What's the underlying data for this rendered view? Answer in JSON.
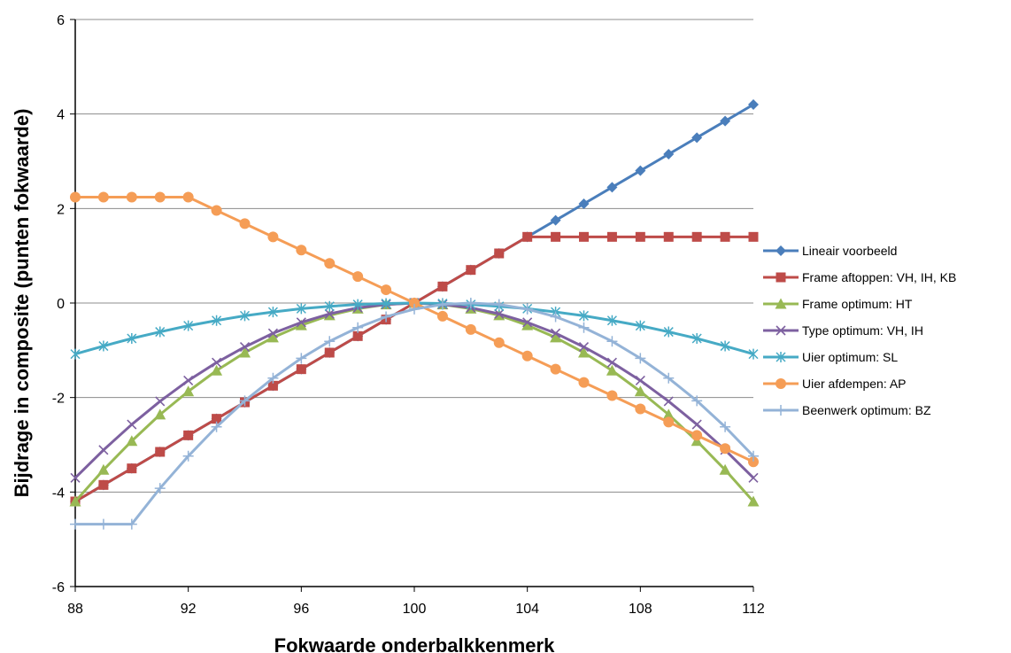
{
  "chart_data": {
    "type": "line",
    "title": "",
    "xlabel": "Fokwaarde onderbalkkenmerk",
    "ylabel": "Bijdrage in composite (punten fokwaarde)",
    "xlim": [
      88,
      112
    ],
    "ylim": [
      -6,
      6
    ],
    "x_ticks": [
      88,
      92,
      96,
      100,
      104,
      108,
      112
    ],
    "y_ticks": [
      -6,
      -4,
      -2,
      0,
      2,
      4,
      6
    ],
    "grid": "horizontal",
    "legend_position": "right",
    "x": [
      88,
      89,
      90,
      91,
      92,
      93,
      94,
      95,
      96,
      97,
      98,
      99,
      100,
      101,
      102,
      103,
      104,
      105,
      106,
      107,
      108,
      109,
      110,
      111,
      112
    ],
    "series": [
      {
        "name": "Lineair voorbeeld",
        "color": "#4a7ebb",
        "marker": "diamond",
        "values": [
          -4.2,
          -3.85,
          -3.5,
          -3.15,
          -2.8,
          -2.45,
          -2.1,
          -1.75,
          -1.4,
          -1.05,
          -0.7,
          -0.35,
          0,
          0.35,
          0.7,
          1.05,
          1.4,
          1.75,
          2.1,
          2.45,
          2.8,
          3.15,
          3.5,
          3.85,
          4.2
        ]
      },
      {
        "name": "Frame aftoppen: VH, IH, KB",
        "color": "#be4b48",
        "marker": "square",
        "values": [
          -4.2,
          -3.85,
          -3.5,
          -3.15,
          -2.8,
          -2.45,
          -2.1,
          -1.75,
          -1.4,
          -1.05,
          -0.7,
          -0.35,
          0,
          0.35,
          0.7,
          1.05,
          1.4,
          1.4,
          1.4,
          1.4,
          1.4,
          1.4,
          1.4,
          1.4,
          1.4
        ]
      },
      {
        "name": "Frame optimum: HT",
        "color": "#98b954",
        "marker": "triangle",
        "values": [
          -4.2,
          -3.53,
          -2.92,
          -2.36,
          -1.87,
          -1.43,
          -1.05,
          -0.73,
          -0.47,
          -0.26,
          -0.12,
          -0.03,
          0,
          -0.03,
          -0.12,
          -0.26,
          -0.47,
          -0.73,
          -1.05,
          -1.43,
          -1.87,
          -2.36,
          -2.92,
          -3.53,
          -4.2
        ]
      },
      {
        "name": "Type optimum: VH, IH",
        "color": "#7d60a0",
        "marker": "x",
        "values": [
          -3.7,
          -3.11,
          -2.57,
          -2.08,
          -1.64,
          -1.26,
          -0.93,
          -0.64,
          -0.41,
          -0.23,
          -0.1,
          -0.03,
          0,
          -0.03,
          -0.1,
          -0.23,
          -0.41,
          -0.64,
          -0.93,
          -1.26,
          -1.64,
          -2.08,
          -2.57,
          -3.11,
          -3.7
        ]
      },
      {
        "name": "Uier optimum: SL",
        "color": "#46aac5",
        "marker": "asterisk",
        "values": [
          -1.08,
          -0.91,
          -0.75,
          -0.61,
          -0.48,
          -0.37,
          -0.27,
          -0.19,
          -0.12,
          -0.07,
          -0.03,
          -0.01,
          0,
          -0.01,
          -0.03,
          -0.07,
          -0.12,
          -0.19,
          -0.27,
          -0.37,
          -0.48,
          -0.61,
          -0.75,
          -0.91,
          -1.08
        ]
      },
      {
        "name": "Uier afdempen: AP",
        "color": "#f59d56",
        "marker": "circle",
        "values": [
          2.24,
          2.24,
          2.24,
          2.24,
          2.24,
          1.96,
          1.68,
          1.4,
          1.12,
          0.84,
          0.56,
          0.28,
          0,
          -0.28,
          -0.56,
          -0.84,
          -1.12,
          -1.4,
          -1.68,
          -1.96,
          -2.24,
          -2.52,
          -2.8,
          -3.08,
          -3.36
        ]
      },
      {
        "name": "Beenwerk optimum: BZ",
        "color": "#94b3d7",
        "marker": "plus",
        "values": [
          -4.68,
          -4.68,
          -4.68,
          -3.92,
          -3.24,
          -2.62,
          -2.07,
          -1.59,
          -1.17,
          -0.81,
          -0.52,
          -0.29,
          -0.13,
          -0.03,
          0,
          -0.03,
          -0.13,
          -0.29,
          -0.52,
          -0.81,
          -1.17,
          -1.59,
          -2.07,
          -2.62,
          -3.24
        ]
      }
    ]
  }
}
